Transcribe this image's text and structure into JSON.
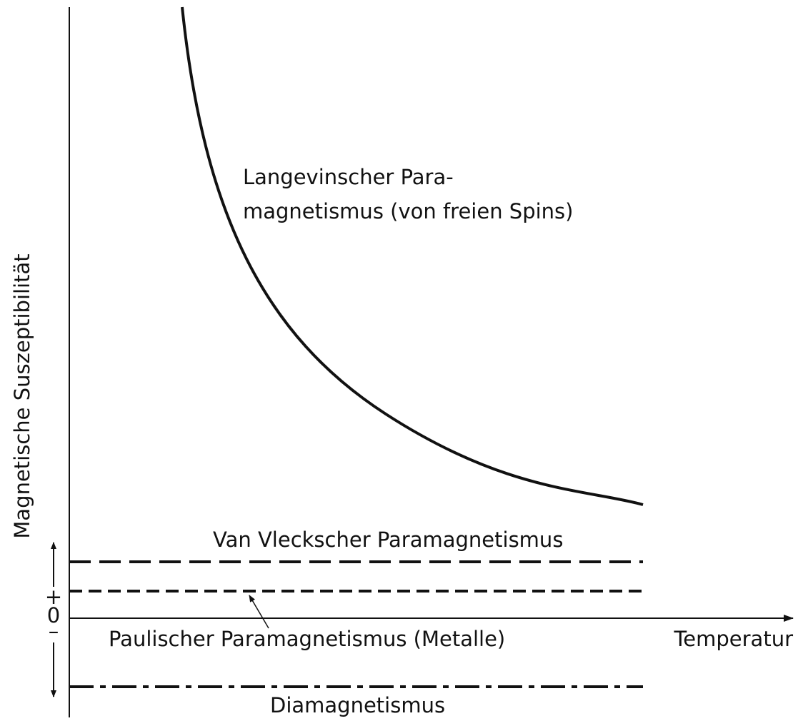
{
  "axes": {
    "x_label": "Temperatur",
    "y_label": "Magnetische Suszeptibilität",
    "plus": "+",
    "zero": "0",
    "minus": "–"
  },
  "curves": [
    {
      "label": [
        "Langevinscher Para-",
        "magnetismus (von freien Spins)"
      ]
    },
    {
      "label": [
        "Van Vleckscher Paramagnetismus"
      ]
    },
    {
      "label": [
        "Paulischer Paramagnetismus (Metalle)"
      ]
    },
    {
      "label": [
        "Diamagnetismus"
      ]
    }
  ]
}
